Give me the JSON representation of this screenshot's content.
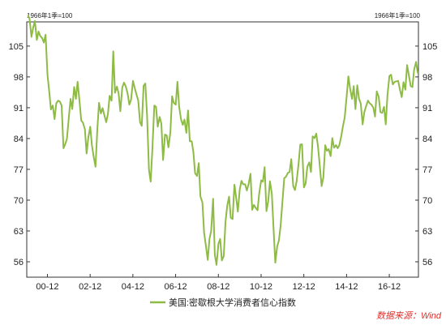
{
  "unit_left": "1966年1季=100",
  "unit_right": "1966年1季=100",
  "source": "数据来源：Wind",
  "chart_data": {
    "type": "line",
    "series": [
      {
        "name": "美国:密歇根大学消费者信心指数",
        "color": "#8dbb45",
        "x": [
          2000.0,
          2000.08,
          2000.17,
          2000.25,
          2000.33,
          2000.42,
          2000.5,
          2000.58,
          2000.67,
          2000.75,
          2000.83,
          2000.92,
          2001.0,
          2001.08,
          2001.17,
          2001.25,
          2001.33,
          2001.42,
          2001.5,
          2001.58,
          2001.67,
          2001.75,
          2001.83,
          2001.92,
          2002.0,
          2002.08,
          2002.17,
          2002.25,
          2002.33,
          2002.42,
          2002.5,
          2002.58,
          2002.67,
          2002.75,
          2002.83,
          2002.92,
          2003.0,
          2003.08,
          2003.17,
          2003.25,
          2003.33,
          2003.42,
          2003.5,
          2003.58,
          2003.67,
          2003.75,
          2003.83,
          2003.92,
          2004.0,
          2004.08,
          2004.17,
          2004.25,
          2004.33,
          2004.42,
          2004.5,
          2004.58,
          2004.67,
          2004.75,
          2004.83,
          2004.92,
          2005.0,
          2005.08,
          2005.17,
          2005.25,
          2005.33,
          2005.42,
          2005.5,
          2005.58,
          2005.67,
          2005.75,
          2005.83,
          2005.92,
          2006.0,
          2006.08,
          2006.17,
          2006.25,
          2006.33,
          2006.42,
          2006.5,
          2006.58,
          2006.67,
          2006.75,
          2006.83,
          2006.92,
          2007.0,
          2007.08,
          2007.17,
          2007.25,
          2007.33,
          2007.42,
          2007.5,
          2007.58,
          2007.67,
          2007.75,
          2007.83,
          2007.92,
          2008.0,
          2008.08,
          2008.17,
          2008.25,
          2008.33,
          2008.42,
          2008.5,
          2008.58,
          2008.67,
          2008.75,
          2008.83,
          2008.92,
          2009.0,
          2009.08,
          2009.17,
          2009.25,
          2009.33,
          2009.42,
          2009.5,
          2009.58,
          2009.67,
          2009.75,
          2009.83,
          2009.92,
          2010.0,
          2010.08,
          2010.17,
          2010.25,
          2010.33,
          2010.42,
          2010.5,
          2010.58,
          2010.67,
          2010.75,
          2010.83,
          2010.92,
          2011.0,
          2011.08,
          2011.17,
          2011.25,
          2011.33,
          2011.42,
          2011.5,
          2011.58,
          2011.67,
          2011.75,
          2011.83,
          2011.92,
          2012.0,
          2012.08,
          2012.17,
          2012.25,
          2012.33,
          2012.42,
          2012.5,
          2012.58,
          2012.67,
          2012.75,
          2012.83,
          2012.92,
          2013.0,
          2013.08,
          2013.17,
          2013.25,
          2013.33,
          2013.42,
          2013.5,
          2013.58,
          2013.67,
          2013.75,
          2013.83,
          2013.92,
          2014.0,
          2014.08,
          2014.17,
          2014.25,
          2014.33,
          2014.42,
          2014.5,
          2014.58,
          2014.67,
          2014.75,
          2014.83,
          2014.92,
          2015.0,
          2015.08,
          2015.17,
          2015.25,
          2015.33,
          2015.42,
          2015.5,
          2015.58,
          2015.67,
          2015.75,
          2015.83,
          2015.92,
          2016.0,
          2016.08,
          2016.17,
          2016.25,
          2016.33,
          2016.42,
          2016.5,
          2016.58,
          2016.67,
          2016.75,
          2016.83,
          2016.92,
          2017.0,
          2017.08,
          2017.17,
          2017.25,
          2017.33,
          2017.42,
          2017.5,
          2017.58,
          2017.67,
          2017.75,
          2017.83,
          2017.92,
          2018.0,
          2018.08,
          2018.17,
          2018.25
        ],
        "values": [
          112.0,
          111.3,
          107.1,
          109.2,
          110.7,
          106.4,
          108.3,
          107.3,
          106.8,
          105.8,
          107.6,
          98.4,
          94.7,
          90.6,
          91.5,
          88.4,
          92.0,
          92.6,
          92.4,
          91.5,
          81.8,
          82.7,
          83.9,
          88.8,
          93.0,
          90.7,
          95.7,
          93.0,
          96.9,
          92.4,
          88.1,
          87.6,
          86.1,
          80.6,
          84.2,
          86.7,
          82.4,
          79.9,
          77.6,
          86.0,
          92.1,
          89.7,
          90.9,
          89.3,
          87.7,
          89.6,
          93.7,
          92.6,
          103.8,
          94.4,
          95.8,
          94.2,
          90.2,
          95.6,
          96.7,
          95.9,
          94.2,
          91.7,
          92.8,
          97.1,
          95.5,
          94.1,
          92.6,
          87.7,
          86.9,
          96.0,
          96.5,
          89.1,
          76.9,
          74.2,
          81.6,
          91.5,
          91.2,
          86.7,
          88.9,
          87.4,
          79.1,
          84.9,
          84.7,
          82.0,
          85.4,
          93.6,
          92.1,
          91.7,
          96.9,
          91.3,
          88.4,
          87.1,
          88.3,
          85.3,
          90.4,
          83.4,
          83.4,
          80.9,
          76.1,
          75.5,
          78.4,
          70.8,
          69.5,
          62.6,
          59.8,
          56.4,
          61.2,
          63.0,
          70.3,
          57.6,
          55.3,
          60.1,
          61.2,
          56.3,
          57.3,
          65.1,
          68.7,
          70.8,
          66.0,
          65.7,
          73.5,
          70.6,
          67.4,
          72.5,
          74.4,
          73.6,
          73.6,
          72.2,
          73.6,
          76.0,
          67.8,
          68.9,
          68.2,
          67.7,
          71.6,
          74.5,
          74.2,
          77.5,
          67.5,
          69.8,
          74.3,
          71.5,
          63.7,
          55.8,
          59.5,
          60.8,
          64.1,
          69.9,
          75.0,
          75.3,
          76.2,
          76.4,
          79.3,
          73.2,
          72.3,
          74.3,
          78.3,
          82.6,
          82.7,
          72.9,
          73.8,
          77.6,
          78.6,
          76.4,
          84.5,
          84.1,
          85.1,
          82.1,
          77.5,
          73.2,
          75.1,
          82.5,
          81.2,
          81.6,
          80.0,
          84.1,
          81.9,
          82.5,
          81.8,
          82.5,
          84.6,
          86.9,
          88.8,
          93.6,
          98.1,
          95.4,
          93.0,
          95.9,
          90.7,
          96.1,
          93.1,
          91.9,
          87.2,
          90.0,
          91.3,
          92.6,
          92.0,
          91.7,
          91.0,
          89.0,
          94.7,
          93.5,
          90.0,
          89.8,
          91.2,
          87.2,
          93.8,
          98.2,
          98.5,
          96.3,
          96.9,
          97.0,
          97.1,
          95.0,
          93.4,
          96.8,
          95.1,
          100.7,
          98.5,
          95.9,
          95.7,
          99.7,
          101.4,
          98.8
        ]
      }
    ],
    "x_ticks": [
      "00-12",
      "02-12",
      "04-12",
      "06-12",
      "08-12",
      "10-12",
      "12-12",
      "14-12",
      "16-12"
    ],
    "y_ticks": [
      56,
      63,
      70,
      77,
      84,
      91,
      98,
      105
    ],
    "ylim": [
      52.5,
      110.5
    ],
    "xlim": [
      1999.95,
      2018.28
    ],
    "legend": "bottom-center",
    "grid": false
  }
}
